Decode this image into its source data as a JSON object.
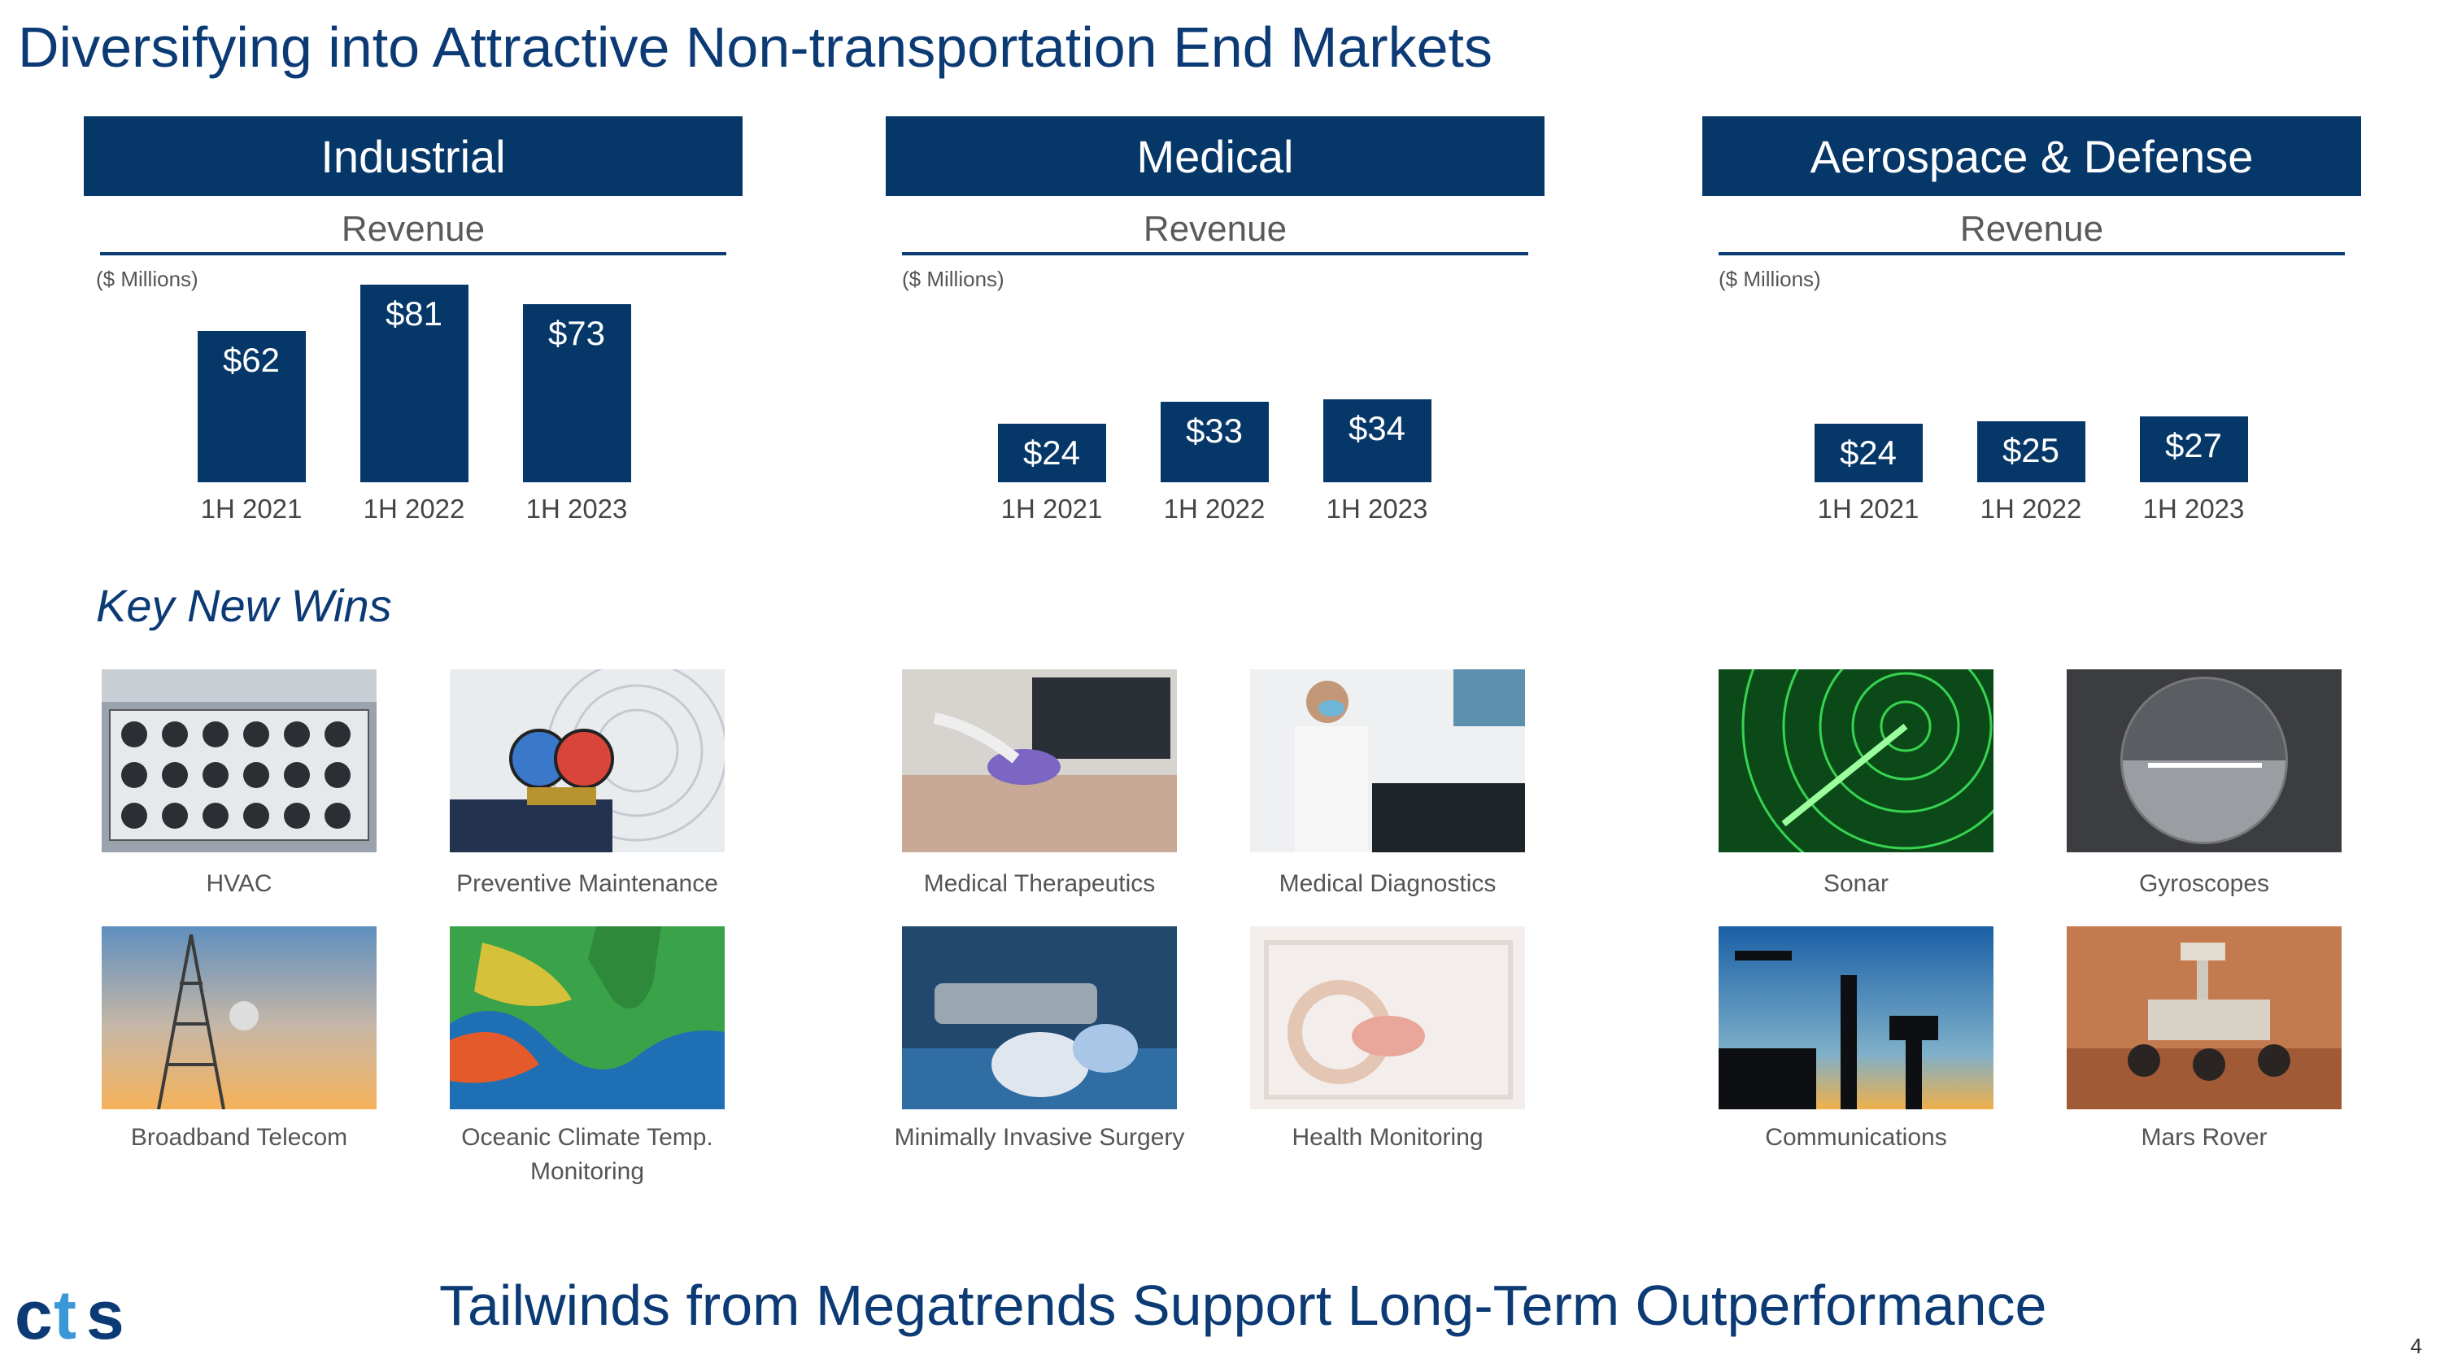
{
  "page_title": "Diversifying into Attractive Non-transportation End Markets",
  "revenue_label": "Revenue",
  "units_note": "($ Millions)",
  "key_wins_title": "Key New Wins",
  "footer": "Tailwinds from Megatrends Support Long-Term Outperformance",
  "page_number": "4",
  "logo_text": "cts",
  "colors": {
    "brand_navy": "#063769",
    "title_blue": "#0b3a75",
    "caption_gray": "#555555"
  },
  "chart_data": [
    {
      "type": "bar",
      "title": "Industrial",
      "ylabel": "Revenue",
      "unit": "($ Millions)",
      "categories": [
        "1H 2021",
        "1H 2022",
        "1H 2023"
      ],
      "values": [
        62,
        81,
        73
      ],
      "data_labels": [
        "$62",
        "$81",
        "$73"
      ]
    },
    {
      "type": "bar",
      "title": "Medical",
      "ylabel": "Revenue",
      "unit": "($ Millions)",
      "categories": [
        "1H 2021",
        "1H 2022",
        "1H 2023"
      ],
      "values": [
        24,
        33,
        34
      ],
      "data_labels": [
        "$24",
        "$33",
        "$34"
      ]
    },
    {
      "type": "bar",
      "title": "Aerospace & Defense",
      "ylabel": "Revenue",
      "unit": "($ Millions)",
      "categories": [
        "1H 2021",
        "1H 2022",
        "1H 2023"
      ],
      "values": [
        24,
        25,
        27
      ],
      "data_labels": [
        "$24",
        "$25",
        "$27"
      ]
    }
  ],
  "wins": [
    {
      "segment": "Industrial",
      "items": [
        {
          "caption": "HVAC",
          "icon": "hvac-units-image"
        },
        {
          "caption": "Preventive Maintenance",
          "icon": "pressure-gauges-image"
        },
        {
          "caption": "Broadband Telecom",
          "icon": "cell-tower-image"
        },
        {
          "caption": "Oceanic Climate Temp. Monitoring",
          "icon": "ocean-temp-map-image"
        }
      ]
    },
    {
      "segment": "Medical",
      "items": [
        {
          "caption": "Medical Therapeutics",
          "icon": "ultrasound-probe-image"
        },
        {
          "caption": "Medical Diagnostics",
          "icon": "ultrasound-operator-image"
        },
        {
          "caption": "Minimally Invasive Surgery",
          "icon": "surgical-microscope-image"
        },
        {
          "caption": "Health Monitoring",
          "icon": "incubator-image"
        }
      ]
    },
    {
      "segment": "Aerospace & Defense",
      "items": [
        {
          "caption": "Sonar",
          "icon": "sonar-screen-image"
        },
        {
          "caption": "Gyroscopes",
          "icon": "attitude-indicator-image"
        },
        {
          "caption": "Communications",
          "icon": "ship-antenna-image"
        },
        {
          "caption": "Mars Rover",
          "icon": "mars-rover-image"
        }
      ]
    }
  ]
}
